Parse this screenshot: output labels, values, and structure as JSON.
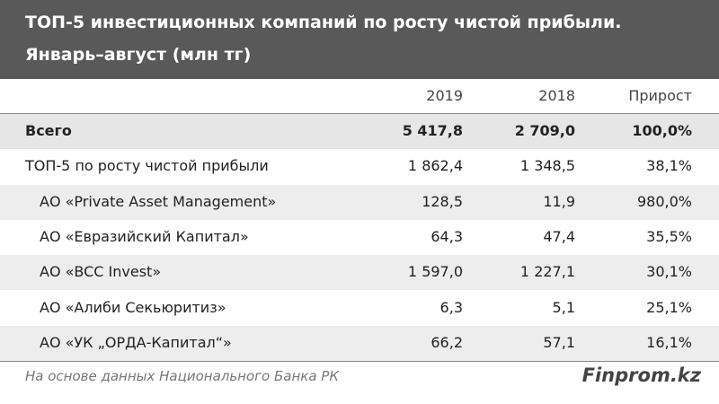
{
  "header": {
    "title": "ТОП-5 инвестиционных компаний по росту чистой прибыли.",
    "subtitle": "Январь–август (млн тг)"
  },
  "table": {
    "columns": [
      "2019",
      "2018",
      "Прирост"
    ],
    "rows": [
      [
        "Всего",
        "5 417,8",
        "2 709,0",
        "100,0%"
      ],
      [
        "ТОП-5 по росту чистой прибыли",
        "1 862,4",
        "1 348,5",
        "38,1%"
      ],
      [
        "АО «Private Asset Management»",
        "128,5",
        "11,9",
        "980,0%"
      ],
      [
        "АО «Евразийский Капитал»",
        "64,3",
        "47,4",
        "35,5%"
      ],
      [
        "АО «BCC Invest»",
        "1 597,0",
        "1 227,1",
        "30,1%"
      ],
      [
        "АО «Алиби Секьюритиз»",
        "6,3",
        "5,1",
        "25,1%"
      ],
      [
        "АО «УК „ОРДА-Капитал“»",
        "66,2",
        "57,1",
        "16,1%"
      ]
    ]
  },
  "footer": {
    "source": "На основе данных Национального Банка РК",
    "brand": "Finprom.kz"
  }
}
